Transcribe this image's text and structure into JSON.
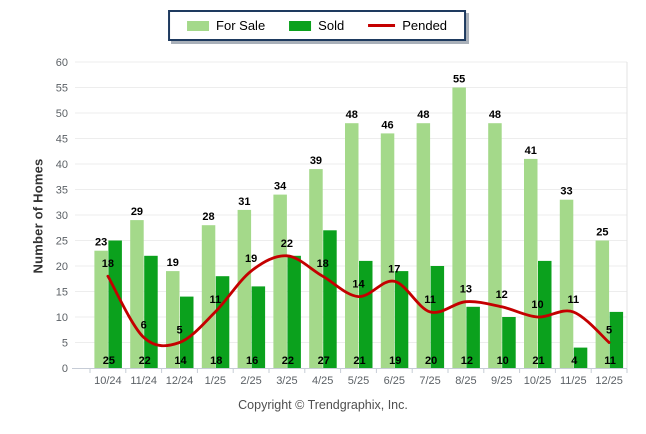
{
  "chart_data": {
    "type": "bar",
    "title": "",
    "categories": [
      "10/24",
      "11/24",
      "12/24",
      "1/25",
      "2/25",
      "3/25",
      "4/25",
      "5/25",
      "6/25",
      "7/25",
      "8/25",
      "9/25",
      "10/25",
      "11/25",
      "12/25"
    ],
    "series": [
      {
        "name": "For Sale",
        "type": "bar",
        "color": "#a4d98a",
        "values": [
          23,
          29,
          19,
          28,
          31,
          34,
          39,
          48,
          46,
          48,
          55,
          48,
          41,
          33,
          25
        ]
      },
      {
        "name": "Sold",
        "type": "bar",
        "color": "#0ba11d",
        "values": [
          25,
          22,
          14,
          18,
          16,
          22,
          27,
          21,
          19,
          20,
          12,
          10,
          21,
          4,
          11
        ]
      },
      {
        "name": "Pended",
        "type": "line",
        "color": "#c40000",
        "values": [
          18,
          6,
          5,
          11,
          19,
          22,
          18,
          14,
          17,
          11,
          13,
          12,
          10,
          11,
          5
        ]
      }
    ],
    "xlabel": "",
    "ylabel": "Number of Homes",
    "ylim": [
      0,
      60
    ],
    "ytick_step": 5,
    "grid": true,
    "legend_position": "top-center",
    "axis_colors": {
      "gridline": "#ededed",
      "axis_line": "#c6ccd6",
      "tick_label": "#5c6166",
      "value_label": "#000000",
      "plot_right_border": "#e3e3e3"
    }
  },
  "footer": {
    "copyright": "Copyright © Trendgraphix, Inc."
  }
}
